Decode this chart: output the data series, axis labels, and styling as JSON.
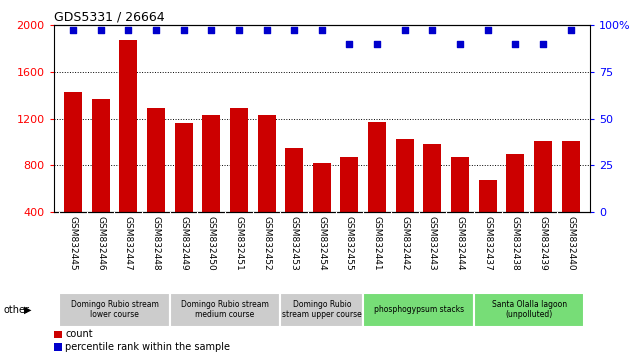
{
  "title": "GDS5331 / 26664",
  "samples": [
    "GSM832445",
    "GSM832446",
    "GSM832447",
    "GSM832448",
    "GSM832449",
    "GSM832450",
    "GSM832451",
    "GSM832452",
    "GSM832453",
    "GSM832454",
    "GSM832455",
    "GSM832441",
    "GSM832442",
    "GSM832443",
    "GSM832444",
    "GSM832437",
    "GSM832438",
    "GSM832439",
    "GSM832440"
  ],
  "counts": [
    1430,
    1370,
    1870,
    1290,
    1160,
    1230,
    1290,
    1230,
    950,
    820,
    870,
    1170,
    1030,
    980,
    870,
    680,
    900,
    1010,
    1010
  ],
  "percentiles": [
    97,
    97,
    97,
    97,
    97,
    97,
    97,
    97,
    97,
    97,
    90,
    90,
    97,
    97,
    90,
    97,
    90,
    90,
    97
  ],
  "bar_color": "#cc0000",
  "dot_color": "#0000cc",
  "ylim_left": [
    400,
    2000
  ],
  "ylim_right": [
    0,
    100
  ],
  "yticks_left": [
    400,
    800,
    1200,
    1600,
    2000
  ],
  "yticks_right": [
    0,
    25,
    50,
    75,
    100
  ],
  "ytick_right_labels": [
    "0",
    "25",
    "50",
    "75",
    "100%"
  ],
  "groups": [
    {
      "label": "Domingo Rubio stream\nlower course",
      "start": 0,
      "end": 3,
      "color": "#cccccc"
    },
    {
      "label": "Domingo Rubio stream\nmedium course",
      "start": 4,
      "end": 7,
      "color": "#cccccc"
    },
    {
      "label": "Domingo Rubio\nstream upper course",
      "start": 8,
      "end": 10,
      "color": "#cccccc"
    },
    {
      "label": "phosphogypsum stacks",
      "start": 11,
      "end": 14,
      "color": "#77dd77"
    },
    {
      "label": "Santa Olalla lagoon\n(unpolluted)",
      "start": 15,
      "end": 18,
      "color": "#77dd77"
    }
  ],
  "legend_count_color": "#cc0000",
  "legend_percentile_color": "#0000cc",
  "bg_color": "#ffffff",
  "ticklabel_bg": "#cccccc",
  "group_border_color": "#ffffff",
  "arrow_label": "other"
}
